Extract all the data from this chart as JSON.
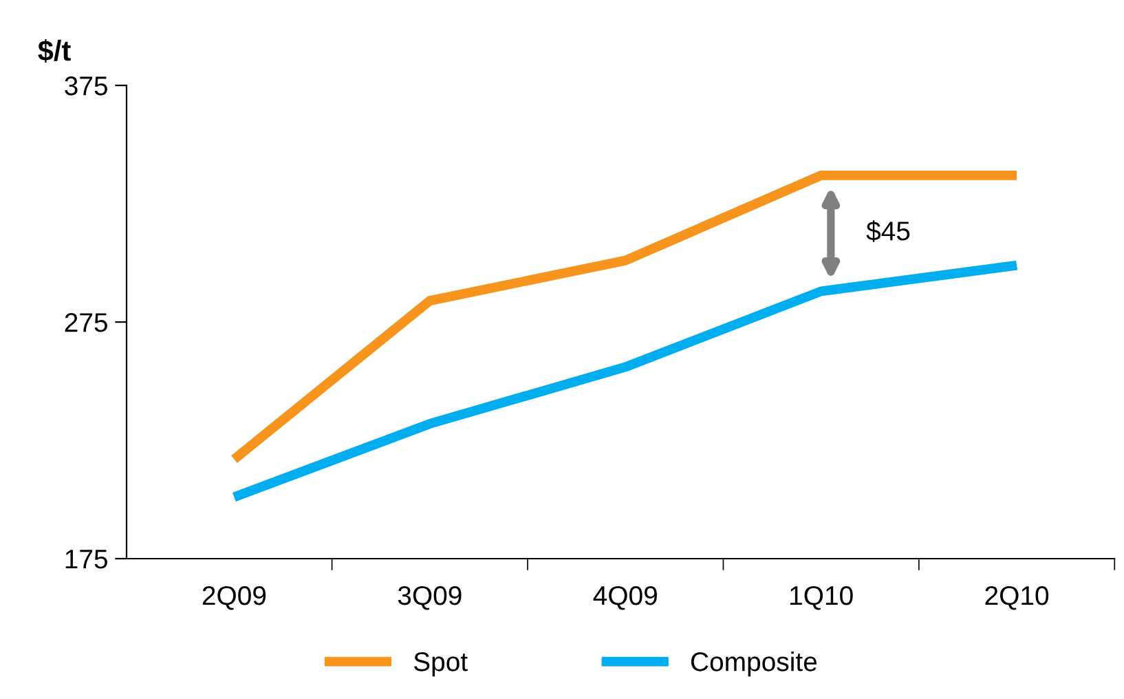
{
  "chart_data": {
    "type": "line",
    "ylabel": "$/t",
    "categories": [
      "2Q09",
      "3Q09",
      "4Q09",
      "1Q10",
      "2Q10"
    ],
    "series": [
      {
        "name": "Spot",
        "color": "#f7941d",
        "values": [
          217,
          284,
          301,
          337,
          337
        ]
      },
      {
        "name": "Composite",
        "color": "#00aeef",
        "values": [
          201,
          232,
          256,
          288,
          299
        ]
      }
    ],
    "ylim": [
      175,
      375
    ],
    "yticks": [
      175,
      275,
      375
    ],
    "annotations": [
      "$45"
    ],
    "grid": false,
    "legend": "bottom",
    "marker": "none",
    "line_style": "solid"
  }
}
